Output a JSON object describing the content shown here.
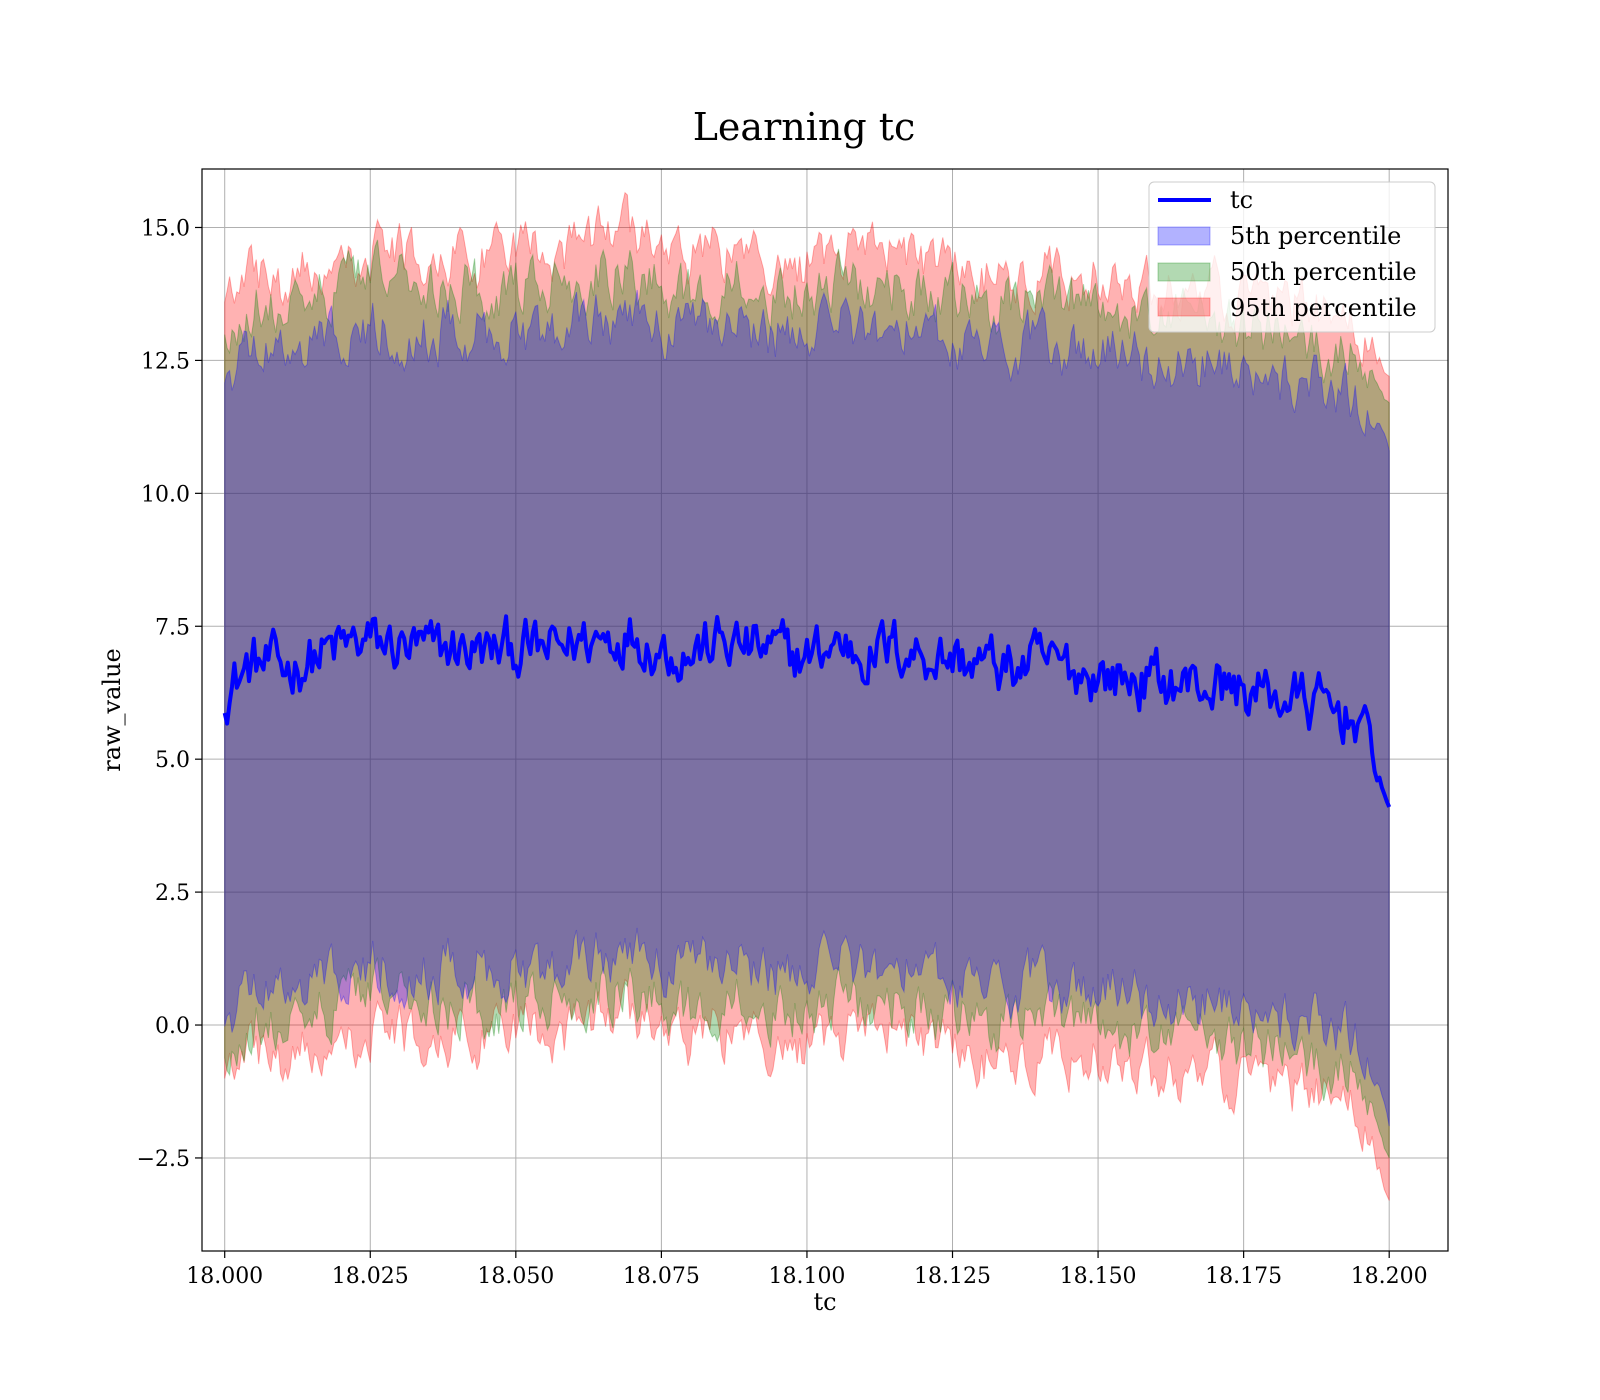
{
  "chart_data": {
    "type": "line",
    "title": "Learning tc",
    "xlabel": "tc",
    "ylabel": "raw_value",
    "xlim": [
      17.9961,
      18.2101
    ],
    "ylim": [
      -4.25,
      16.1
    ],
    "xticks": [
      18.0,
      18.025,
      18.05,
      18.075,
      18.1,
      18.125,
      18.15,
      18.175,
      18.2
    ],
    "xtick_labels": [
      "18.000",
      "18.025",
      "18.050",
      "18.075",
      "18.100",
      "18.125",
      "18.150",
      "18.175",
      "18.200"
    ],
    "yticks": [
      -2.5,
      0.0,
      2.5,
      5.0,
      7.5,
      10.0,
      12.5,
      15.0
    ],
    "ytick_labels": [
      "−2.5",
      "0.0",
      "2.5",
      "5.0",
      "7.5",
      "10.0",
      "12.5",
      "15.0"
    ],
    "grid": true,
    "legend_position": "top-right",
    "legend": [
      "tc",
      "5th percentile",
      "50th percentile",
      "95th percentile"
    ],
    "colors": {
      "line": "#0000ff",
      "band_5th": "#0000ff",
      "band_50th": "#008000",
      "band_95th": "#ff0000",
      "band_alpha": 0.3,
      "grid": "#b0b0b0"
    },
    "x": [
      18.0,
      18.005,
      18.01,
      18.015,
      18.02,
      18.025,
      18.03,
      18.035,
      18.04,
      18.045,
      18.05,
      18.055,
      18.06,
      18.065,
      18.07,
      18.075,
      18.08,
      18.085,
      18.09,
      18.095,
      18.1,
      18.105,
      18.11,
      18.115,
      18.12,
      18.125,
      18.13,
      18.135,
      18.14,
      18.145,
      18.15,
      18.155,
      18.16,
      18.165,
      18.17,
      18.175,
      18.18,
      18.185,
      18.19,
      18.195,
      18.2
    ],
    "series": [
      {
        "name": "tc",
        "values": [
          6.3,
          6.8,
          6.7,
          6.9,
          7.1,
          7.2,
          7.1,
          7.0,
          7.1,
          7.0,
          7.1,
          7.0,
          7.2,
          7.3,
          7.4,
          7.1,
          7.0,
          7.2,
          7.1,
          7.0,
          6.9,
          7.2,
          7.0,
          7.1,
          7.0,
          6.9,
          6.8,
          6.7,
          6.8,
          6.7,
          6.6,
          6.5,
          6.5,
          6.4,
          6.4,
          6.3,
          6.2,
          6.1,
          5.9,
          5.8,
          4.1
        ]
      },
      {
        "name": "5th percentile",
        "lower": [
          0.2,
          0.8,
          0.7,
          0.9,
          1.1,
          1.2,
          1.1,
          1.0,
          1.1,
          1.0,
          1.1,
          1.0,
          1.2,
          1.3,
          1.4,
          1.1,
          1.0,
          1.2,
          1.1,
          1.0,
          0.9,
          1.2,
          1.0,
          1.1,
          1.0,
          0.9,
          0.8,
          0.7,
          0.8,
          0.7,
          0.6,
          0.5,
          0.5,
          0.4,
          0.4,
          0.3,
          0.2,
          0.1,
          -0.1,
          -0.2,
          -1.9
        ],
        "upper": [
          12.3,
          12.8,
          12.7,
          12.9,
          13.1,
          13.2,
          13.1,
          13.0,
          13.1,
          13.0,
          13.1,
          13.0,
          13.2,
          13.3,
          13.4,
          13.1,
          13.0,
          13.2,
          13.1,
          13.0,
          12.9,
          13.2,
          13.0,
          13.1,
          13.0,
          12.9,
          12.8,
          12.7,
          12.8,
          12.7,
          12.6,
          12.5,
          12.5,
          12.4,
          12.4,
          12.3,
          12.2,
          12.1,
          11.9,
          11.8,
          10.8
        ]
      },
      {
        "name": "50th percentile",
        "lower": [
          -0.5,
          0.1,
          0.0,
          0.2,
          0.4,
          0.5,
          0.4,
          0.3,
          0.4,
          0.3,
          0.4,
          0.3,
          0.5,
          0.6,
          0.7,
          0.4,
          0.3,
          0.5,
          0.4,
          0.3,
          0.2,
          0.5,
          0.3,
          0.4,
          0.3,
          0.2,
          0.1,
          0.0,
          0.1,
          0.0,
          -0.1,
          -0.2,
          -0.2,
          -0.3,
          -0.3,
          -0.4,
          -0.5,
          -0.6,
          -0.8,
          -0.9,
          -2.5
        ],
        "upper": [
          13.1,
          13.6,
          13.5,
          13.7,
          13.9,
          14.0,
          13.9,
          13.8,
          13.9,
          13.8,
          13.9,
          13.8,
          14.0,
          14.1,
          14.2,
          13.9,
          13.8,
          14.0,
          13.9,
          13.8,
          13.7,
          14.0,
          13.8,
          13.9,
          13.8,
          13.7,
          13.6,
          13.5,
          13.6,
          13.5,
          13.4,
          13.3,
          13.3,
          13.2,
          13.2,
          13.1,
          13.0,
          12.9,
          12.7,
          12.6,
          11.7
        ]
      },
      {
        "name": "95th percentile",
        "lower": [
          -1.0,
          -0.5,
          -0.6,
          -0.4,
          -0.2,
          -0.1,
          -0.2,
          -0.3,
          -0.2,
          -0.3,
          -0.2,
          -0.3,
          -0.1,
          0.0,
          0.2,
          -0.2,
          -0.3,
          -0.1,
          -0.2,
          -0.3,
          -0.4,
          -0.1,
          -0.3,
          -0.2,
          -0.3,
          -0.4,
          -0.6,
          -0.6,
          -0.5,
          -0.6,
          -0.7,
          -0.8,
          -0.8,
          -0.9,
          -0.9,
          -1.0,
          -1.1,
          -1.3,
          -1.4,
          -1.5,
          -3.3
        ],
        "upper": [
          13.6,
          14.1,
          14.0,
          14.3,
          14.5,
          14.6,
          14.5,
          14.4,
          14.5,
          14.4,
          14.5,
          14.4,
          14.6,
          14.8,
          15.0,
          14.5,
          14.4,
          14.6,
          14.5,
          14.4,
          14.3,
          14.6,
          14.4,
          14.5,
          14.4,
          14.3,
          14.2,
          14.1,
          14.2,
          14.1,
          14.0,
          13.9,
          13.9,
          13.8,
          13.8,
          13.7,
          13.6,
          13.5,
          13.3,
          13.2,
          12.2
        ]
      }
    ]
  }
}
